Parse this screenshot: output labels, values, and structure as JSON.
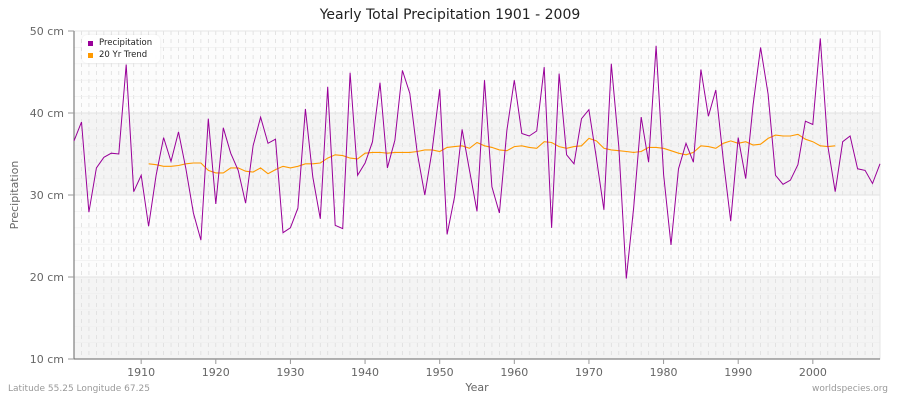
{
  "chart_data": {
    "type": "line",
    "title": "Yearly Total Precipitation 1901 - 2009",
    "xlabel": "Year",
    "ylabel": "Precipitation",
    "ylim": [
      10,
      50
    ],
    "xlim": [
      1901,
      2009
    ],
    "y_ticks": [
      "10 cm",
      "20 cm",
      "30 cm",
      "40 cm",
      "50 cm"
    ],
    "y_tick_values": [
      10,
      20,
      30,
      40,
      50
    ],
    "x_ticks": [
      "1910",
      "1920",
      "1930",
      "1940",
      "1950",
      "1960",
      "1970",
      "1980",
      "1990",
      "2000"
    ],
    "x_tick_values": [
      1910,
      1920,
      1930,
      1940,
      1950,
      1960,
      1970,
      1980,
      1990,
      2000
    ],
    "grid": true,
    "legend_position": "top-left",
    "series": [
      {
        "name": "Precipitation",
        "color": "#990099",
        "start_year": 1901,
        "values": [
          36.6,
          38.9,
          27.9,
          33.3,
          34.6,
          35.1,
          35.0,
          45.9,
          30.4,
          32.4,
          26.2,
          32.4,
          37.0,
          34.1,
          37.7,
          33.2,
          27.8,
          24.5,
          39.3,
          28.9,
          38.2,
          35.1,
          33.0,
          29.0,
          36.0,
          39.5,
          36.3,
          36.8,
          25.4,
          26.0,
          28.4,
          40.5,
          32.2,
          27.1,
          43.2,
          26.3,
          25.9,
          44.9,
          32.4,
          33.9,
          36.5,
          43.7,
          33.3,
          36.7,
          45.2,
          42.4,
          35.1,
          30.0,
          35.5,
          42.9,
          25.2,
          29.8,
          38.0,
          33.0,
          28.0,
          44.0,
          31.0,
          27.8,
          37.9,
          44.0,
          37.5,
          37.2,
          37.8,
          45.6,
          26.0,
          44.8,
          34.9,
          33.8,
          39.3,
          40.4,
          34.5,
          28.2,
          46.0,
          35.9,
          19.8,
          28.5,
          39.5,
          34.0,
          48.2,
          32.5,
          23.9,
          33.2,
          36.3,
          34.0,
          45.3,
          39.6,
          42.8,
          34.3,
          26.8,
          37.0,
          32.0,
          41.0,
          48.0,
          42.3,
          32.4,
          31.3,
          31.8,
          33.7,
          39.0,
          38.6,
          49.1,
          36.0,
          30.4,
          36.5,
          37.2,
          33.2,
          33.0,
          31.4,
          33.8
        ]
      },
      {
        "name": "20 Yr Trend",
        "color": "#ff9900",
        "start_year": 1911,
        "values": [
          33.8,
          33.7,
          33.5,
          33.5,
          33.6,
          33.8,
          33.9,
          33.9,
          33.0,
          32.7,
          32.7,
          33.3,
          33.3,
          32.9,
          32.8,
          33.3,
          32.6,
          33.1,
          33.5,
          33.3,
          33.5,
          33.8,
          33.8,
          33.9,
          34.5,
          34.9,
          34.8,
          34.5,
          34.4,
          35.1,
          35.2,
          35.2,
          35.1,
          35.2,
          35.2,
          35.2,
          35.3,
          35.5,
          35.5,
          35.3,
          35.8,
          35.9,
          36.0,
          35.7,
          36.4,
          36.0,
          35.8,
          35.5,
          35.4,
          35.9,
          36.0,
          35.8,
          35.7,
          36.5,
          36.4,
          35.9,
          35.7,
          35.9,
          36.0,
          36.9,
          36.6,
          35.7,
          35.5,
          35.4,
          35.3,
          35.2,
          35.3,
          35.8,
          35.8,
          35.7,
          35.4,
          35.1,
          34.9,
          35.2,
          36.0,
          35.9,
          35.7,
          36.3,
          36.6,
          36.3,
          36.5,
          36.1,
          36.2,
          36.9,
          37.3,
          37.2,
          37.2,
          37.4,
          36.8,
          36.5,
          36.0,
          35.9,
          36.0
        ]
      }
    ]
  },
  "header": {
    "title": "Yearly Total Precipitation 1901 - 2009"
  },
  "legend": {
    "items": [
      {
        "label": "Precipitation",
        "color": "#990099"
      },
      {
        "label": "20 Yr Trend",
        "color": "#ff9900"
      }
    ]
  },
  "footer": {
    "location": "Latitude 55.25 Longitude 67.25",
    "source": "worldspecies.org"
  }
}
